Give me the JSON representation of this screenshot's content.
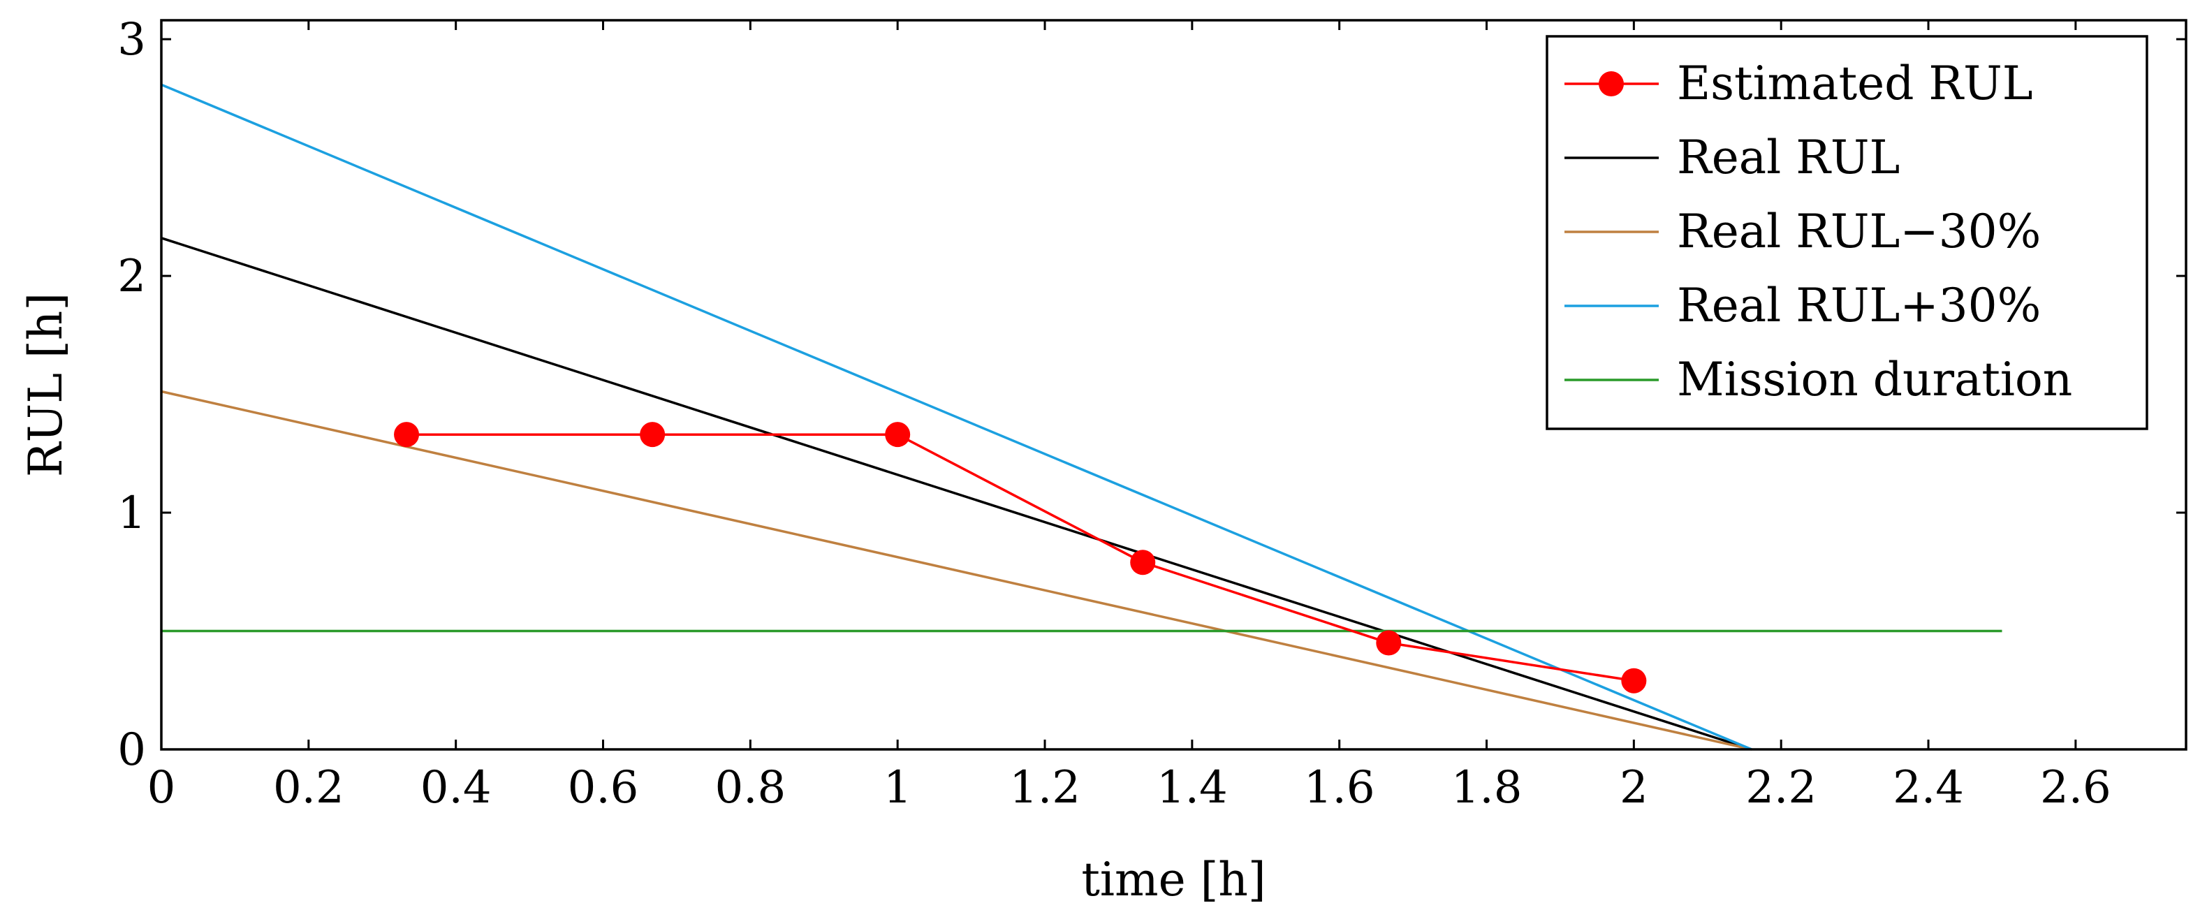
{
  "chart_data": {
    "type": "line",
    "title": "",
    "xlabel": "time [h]",
    "ylabel": "RUL [h]",
    "xlim": [
      0,
      2.75
    ],
    "ylim": [
      0,
      3.08
    ],
    "x_ticks": [
      0,
      0.2,
      0.4,
      0.6,
      0.8,
      1,
      1.2,
      1.4,
      1.6,
      1.8,
      2,
      2.2,
      2.4,
      2.6
    ],
    "x_tick_labels": [
      "0",
      "0.2",
      "0.4",
      "0.6",
      "0.8",
      "1",
      "1.2",
      "1.4",
      "1.6",
      "1.8",
      "2",
      "2.2",
      "2.4",
      "2.6"
    ],
    "y_ticks": [
      0,
      1,
      2,
      3
    ],
    "y_tick_labels": [
      "0",
      "1",
      "2",
      "3"
    ],
    "grid": false,
    "legend_position": "top-right",
    "series": [
      {
        "name": "Estimated RUL",
        "color": "#ff0000",
        "markers": true,
        "x": [
          0.333,
          0.667,
          1.0,
          1.333,
          1.667,
          2.0
        ],
        "y": [
          1.33,
          1.33,
          1.33,
          0.79,
          0.45,
          0.29
        ]
      },
      {
        "name": "Real RUL",
        "color": "#000000",
        "markers": false,
        "x": [
          0,
          2.16
        ],
        "y": [
          2.16,
          0
        ]
      },
      {
        "name": "Real RUL−30%",
        "color": "#bf8040",
        "markers": false,
        "x": [
          0,
          2.16
        ],
        "y": [
          1.512,
          0
        ]
      },
      {
        "name": "Real RUL+30%",
        "color": "#1ca0e0",
        "markers": false,
        "x": [
          0,
          2.16
        ],
        "y": [
          2.808,
          0
        ]
      },
      {
        "name": "Mission duration",
        "color": "#2a9a2a",
        "markers": false,
        "x": [
          0,
          2.5
        ],
        "y": [
          0.5,
          0.5
        ]
      }
    ]
  }
}
